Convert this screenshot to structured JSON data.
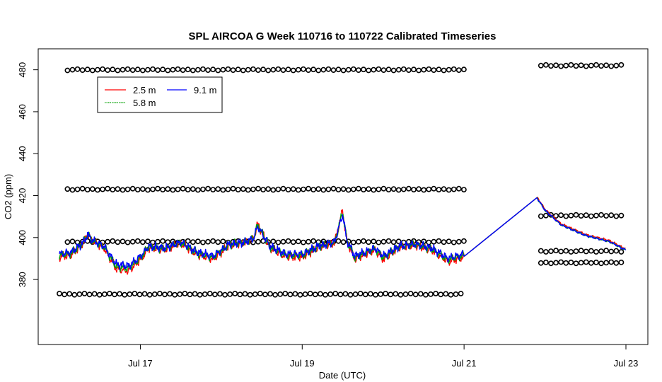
{
  "chart_data": {
    "type": "line",
    "title": "SPL AIRCOA G  Week 110716 to 110722  Calibrated Timeseries",
    "xlabel": "Date (UTC)",
    "ylabel": "CO2 (ppm)",
    "x_unit": "days in July 2011 (UTC)",
    "xlim": [
      16.0,
      23.0
    ],
    "ylim": [
      349,
      490
    ],
    "x_ticks": [
      {
        "value": 17,
        "label": "Jul 17"
      },
      {
        "value": 19,
        "label": "Jul 19"
      },
      {
        "value": 21,
        "label": "Jul 21"
      },
      {
        "value": 23,
        "label": "Jul 23"
      }
    ],
    "y_ticks": [
      380,
      400,
      420,
      440,
      460,
      480
    ],
    "y_tick_labels": [
      "380",
      "400",
      "420",
      "440",
      "460",
      "480"
    ],
    "grid": false,
    "legend": {
      "position": "top-left",
      "entries": [
        {
          "label": "2.5 m",
          "color": "#ff0000"
        },
        {
          "label": "9.1 m",
          "color": "#0000ff"
        },
        {
          "label": "5.8 m",
          "color": "#00a000"
        }
      ]
    },
    "series": [
      {
        "name": "2.5 m",
        "color": "#ff0000",
        "offset": 0.0,
        "tail_offset": 0.5,
        "amp": 1.12,
        "x": [
          16.0,
          16.15,
          16.3,
          16.35,
          16.4,
          16.55,
          16.7,
          16.85,
          16.95,
          17.05,
          17.1,
          17.3,
          17.5,
          17.7,
          17.9,
          18.1,
          18.3,
          18.4,
          18.45,
          18.6,
          18.75,
          18.8,
          19.0,
          19.2,
          19.4,
          19.5,
          19.55,
          19.65,
          19.9,
          20.0,
          20.2,
          20.4,
          20.6,
          20.8,
          21.0,
          21.9,
          22.0,
          22.2,
          22.5,
          22.8,
          23.0
        ],
        "y": [
          391,
          392,
          397,
          401,
          398,
          395,
          386,
          385,
          388,
          392,
          395,
          394,
          397,
          392,
          390,
          396,
          397,
          399,
          405,
          395,
          392,
          391,
          391,
          395,
          397,
          411,
          398,
          390,
          394,
          390,
          395,
          396,
          394,
          389,
          391,
          419,
          413,
          406,
          401,
          398,
          394
        ]
      },
      {
        "name": "5.8 m",
        "color": "#00a000",
        "offset": 0.6,
        "tail_offset": 0.0,
        "amp": 1.04,
        "x": [
          16.0,
          16.15,
          16.3,
          16.35,
          16.4,
          16.55,
          16.7,
          16.85,
          16.95,
          17.05,
          17.1,
          17.3,
          17.5,
          17.7,
          17.9,
          18.1,
          18.3,
          18.4,
          18.45,
          18.6,
          18.75,
          18.8,
          19.0,
          19.2,
          19.4,
          19.5,
          19.55,
          19.65,
          19.9,
          20.0,
          20.2,
          20.4,
          20.6,
          20.8,
          21.0,
          21.9,
          22.0,
          22.2,
          22.5,
          22.8,
          23.0
        ],
        "y": [
          391,
          392,
          397,
          401,
          398,
          395,
          386,
          385,
          388,
          392,
          395,
          394,
          397,
          392,
          390,
          396,
          397,
          399,
          405,
          395,
          392,
          391,
          391,
          395,
          397,
          411,
          398,
          390,
          394,
          390,
          395,
          396,
          394,
          389,
          391,
          419,
          413,
          406,
          401,
          398,
          394
        ]
      },
      {
        "name": "9.1 m",
        "color": "#0000ff",
        "offset": 1.0,
        "tail_offset": 0.0,
        "amp": 0.95,
        "x": [
          16.0,
          16.15,
          16.3,
          16.35,
          16.4,
          16.55,
          16.7,
          16.85,
          16.95,
          17.05,
          17.1,
          17.3,
          17.5,
          17.7,
          17.9,
          18.1,
          18.3,
          18.4,
          18.45,
          18.6,
          18.75,
          18.8,
          19.0,
          19.2,
          19.4,
          19.5,
          19.55,
          19.65,
          19.9,
          20.0,
          20.2,
          20.4,
          20.6,
          20.8,
          21.0,
          21.9,
          22.0,
          22.2,
          22.5,
          22.8,
          23.0
        ],
        "y": [
          391,
          392,
          397,
          401,
          398,
          395,
          386,
          385,
          388,
          392,
          395,
          394,
          397,
          392,
          390,
          396,
          397,
          399,
          405,
          395,
          392,
          391,
          391,
          395,
          397,
          411,
          398,
          390,
          394,
          390,
          395,
          396,
          394,
          389,
          391,
          419,
          413,
          406,
          401,
          398,
          394
        ]
      }
    ],
    "reference_points": {
      "marker": "o",
      "segments": [
        {
          "y": 480.0,
          "x_start": 16.1,
          "x_end": 21.0,
          "step": 0.062
        },
        {
          "y": 423.0,
          "x_start": 16.1,
          "x_end": 21.0,
          "step": 0.062
        },
        {
          "y": 398.0,
          "x_start": 16.1,
          "x_end": 21.0,
          "step": 0.062
        },
        {
          "y": 373.0,
          "x_start": 16.0,
          "x_end": 21.0,
          "step": 0.062
        },
        {
          "y": 482.0,
          "x_start": 21.95,
          "x_end": 23.0,
          "step": 0.062
        },
        {
          "y": 410.5,
          "x_start": 21.95,
          "x_end": 23.0,
          "step": 0.062
        },
        {
          "y": 393.5,
          "x_start": 21.95,
          "x_end": 23.0,
          "step": 0.062
        },
        {
          "y": 388.0,
          "x_start": 21.95,
          "x_end": 23.0,
          "step": 0.062
        }
      ]
    }
  }
}
